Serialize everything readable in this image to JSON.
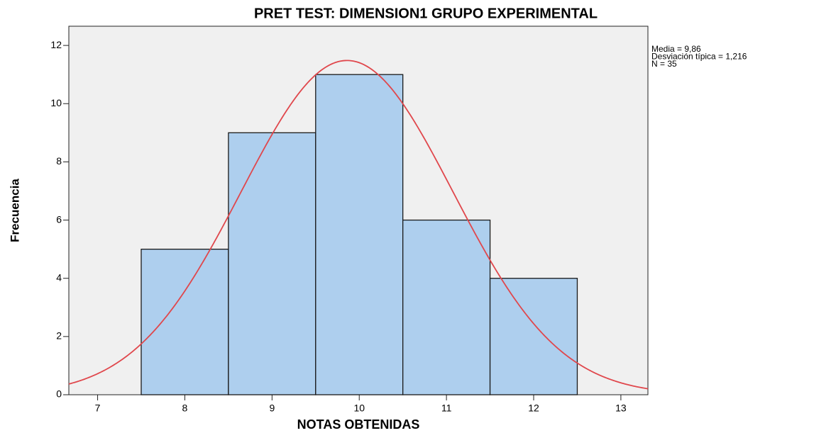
{
  "chart_data": {
    "type": "histogram",
    "title": "PRET TEST: DIMENSION1 GRUPO EXPERIMENTAL",
    "xlabel": "NOTAS OBTENIDAS",
    "ylabel": "Frecuencia",
    "bins": [
      7.5,
      8.5,
      9.5,
      10.5,
      11.5,
      12.5
    ],
    "values": [
      5,
      9,
      11,
      6,
      4
    ],
    "color": "#aecfee",
    "edgecolor": "#1a1a1a",
    "background": "#f0f0f0",
    "xlim": [
      6.67,
      13.31
    ],
    "ylim": [
      0,
      12.66
    ],
    "xticks": [
      7,
      8,
      9,
      10,
      11,
      12,
      13
    ],
    "yticks": [
      0,
      2,
      4,
      6,
      8,
      10,
      12
    ],
    "normal_curve": {
      "mean": 9.86,
      "sd": 1.216,
      "n": 35,
      "color": "#e0474c"
    },
    "annotations": [
      "Media = 9,86",
      "Desviación típica = 1,216",
      "N = 35"
    ]
  }
}
